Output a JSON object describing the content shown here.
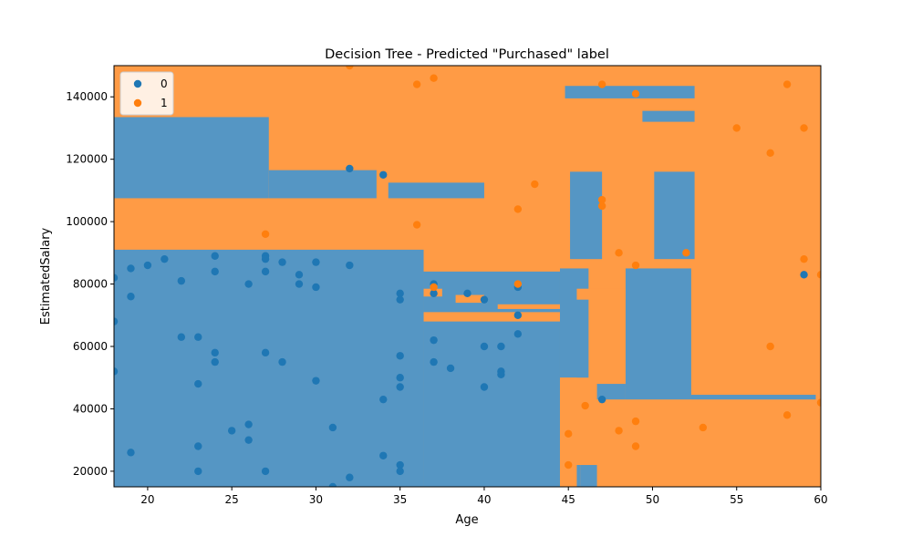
{
  "chart_data": {
    "type": "scatter",
    "title": "Decision Tree - Predicted \"Purchased\" label",
    "xlabel": "Age",
    "ylabel": "EstimatedSalary",
    "xlim": [
      18,
      60
    ],
    "ylim": [
      15000,
      150000
    ],
    "x_ticks": [
      20,
      25,
      30,
      35,
      40,
      45,
      50,
      55,
      60
    ],
    "y_ticks": [
      20000,
      40000,
      60000,
      80000,
      100000,
      120000,
      140000
    ],
    "grid": false,
    "legend": {
      "placement": "top-left",
      "entries": [
        "0",
        "1"
      ]
    },
    "colors": {
      "class_0": "#1f77b4",
      "class_1": "#ff7f0e",
      "region_0": "#5596c4",
      "region_1": "#ff9b45"
    },
    "background_class": 1,
    "decision_regions_class_0": [
      [
        18,
        27.2,
        107500,
        133500
      ],
      [
        27.2,
        33.6,
        107500,
        116500
      ],
      [
        34.3,
        40,
        107500,
        112500
      ],
      [
        18,
        36.4,
        15000,
        91000
      ],
      [
        36.4,
        44.5,
        15000,
        84000
      ],
      [
        44.5,
        46.2,
        50000,
        85000
      ],
      [
        44.5,
        45.7,
        15000,
        22000
      ],
      [
        45.7,
        46.7,
        15000,
        22000
      ],
      [
        46.7,
        48.4,
        43000,
        48000
      ],
      [
        48.4,
        52.3,
        43000,
        85000
      ],
      [
        52.3,
        59.7,
        43000,
        44500
      ],
      [
        45.1,
        47,
        88000,
        116000
      ],
      [
        50.1,
        52.5,
        88000,
        116000
      ],
      [
        44.8,
        52.5,
        139500,
        143500
      ],
      [
        49.4,
        52.5,
        132000,
        135500
      ]
    ],
    "decision_regions_class_1": [
      [
        36.4,
        37.5,
        76000,
        78500
      ],
      [
        38.3,
        40,
        74000,
        76500
      ],
      [
        36.4,
        44.5,
        68000,
        71000
      ],
      [
        40.8,
        44.5,
        72000,
        73500
      ],
      [
        45.5,
        48.4,
        75000,
        78500
      ],
      [
        44.5,
        45.5,
        15000,
        50000
      ]
    ],
    "series": [
      {
        "name": "0",
        "x": [
          18,
          18,
          18,
          19,
          19,
          19,
          20,
          21,
          22,
          22,
          23,
          23,
          23,
          23,
          24,
          24,
          24,
          24,
          25,
          26,
          26,
          26,
          27,
          27,
          27,
          27,
          27,
          28,
          28,
          29,
          29,
          30,
          30,
          30,
          31,
          31,
          32,
          32,
          32,
          34,
          34,
          34,
          35,
          35,
          35,
          35,
          35,
          35,
          35,
          37,
          37,
          37,
          37,
          38,
          39,
          40,
          40,
          40,
          41,
          41,
          41,
          42,
          42,
          42,
          47,
          59
        ],
        "y": [
          82000,
          68000,
          52000,
          85000,
          76000,
          26000,
          86000,
          88000,
          81000,
          63000,
          63000,
          48000,
          28000,
          20000,
          89000,
          84000,
          58000,
          55000,
          33000,
          80000,
          35000,
          30000,
          89000,
          84000,
          58000,
          20000,
          88000,
          87000,
          55000,
          83000,
          80000,
          87000,
          79000,
          49000,
          34000,
          15000,
          117000,
          86000,
          18000,
          115000,
          43000,
          25000,
          77000,
          75000,
          57000,
          50000,
          47000,
          22000,
          20000,
          80000,
          77000,
          62000,
          55000,
          53000,
          77000,
          75000,
          60000,
          47000,
          60000,
          52000,
          51000,
          79000,
          70000,
          64000,
          43000,
          83000
        ]
      },
      {
        "name": "1",
        "x": [
          27,
          32,
          36,
          36,
          37,
          37,
          42,
          42,
          43,
          45,
          45,
          46,
          47,
          47,
          47,
          48,
          48,
          49,
          49,
          49,
          49,
          52,
          53,
          55,
          57,
          57,
          58,
          58,
          59,
          59,
          60,
          60
        ],
        "y": [
          96000,
          150000,
          144000,
          99000,
          146000,
          79000,
          104000,
          80000,
          112000,
          32000,
          22000,
          41000,
          144000,
          107000,
          105000,
          90000,
          33000,
          141000,
          86000,
          36000,
          28000,
          90000,
          34000,
          130000,
          122000,
          60000,
          144000,
          38000,
          130000,
          88000,
          83000,
          42000
        ]
      }
    ]
  }
}
